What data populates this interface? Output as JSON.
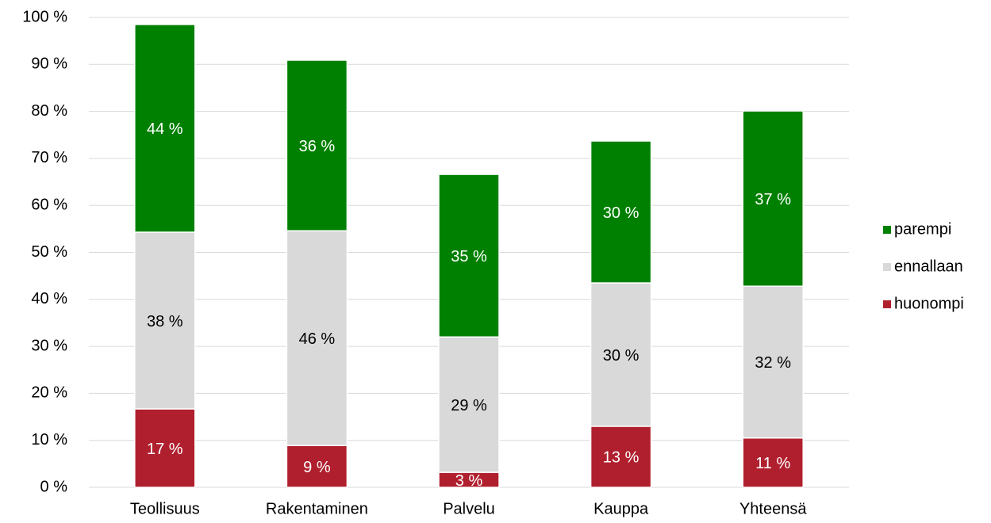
{
  "chart_data": {
    "type": "stacked_bar",
    "categories": [
      "Teollisuus",
      "Rakentaminen",
      "Palvelu",
      "Kauppa",
      "Yhteensä"
    ],
    "series": [
      {
        "name": "huonompi",
        "color": "#b01f2e",
        "values": [
          16.7,
          8.9,
          3.2,
          13.0,
          10.5
        ],
        "value_labels": [
          "17 %",
          "9 %",
          "3 %",
          "13 %",
          "11 %"
        ],
        "label_color": "#ffffff"
      },
      {
        "name": "ennallaan",
        "color": "#d9d9d9",
        "values": [
          37.6,
          45.7,
          28.8,
          30.5,
          32.3
        ],
        "value_labels": [
          "38 %",
          "46 %",
          "29 %",
          "30 %",
          "32 %"
        ],
        "label_color": "#000000"
      },
      {
        "name": "parempi",
        "color": "#008000",
        "values": [
          44.2,
          36.3,
          34.6,
          30.2,
          37.3
        ],
        "value_labels": [
          "44 %",
          "36 %",
          "35 %",
          "30 %",
          "37 %"
        ],
        "label_color": "#ffffff"
      }
    ],
    "ylim": [
      0,
      100
    ],
    "yticks": [
      {
        "value": 0,
        "label": "0 %"
      },
      {
        "value": 10,
        "label": "10 %"
      },
      {
        "value": 20,
        "label": "20 %"
      },
      {
        "value": 30,
        "label": "30 %"
      },
      {
        "value": 40,
        "label": "40 %"
      },
      {
        "value": 50,
        "label": "50 %"
      },
      {
        "value": 60,
        "label": "60 %"
      },
      {
        "value": 70,
        "label": "70 %"
      },
      {
        "value": 80,
        "label": "80 %"
      },
      {
        "value": 90,
        "label": "90 %"
      },
      {
        "value": 100,
        "label": "100 %"
      }
    ],
    "grid": true,
    "legend": "right"
  }
}
